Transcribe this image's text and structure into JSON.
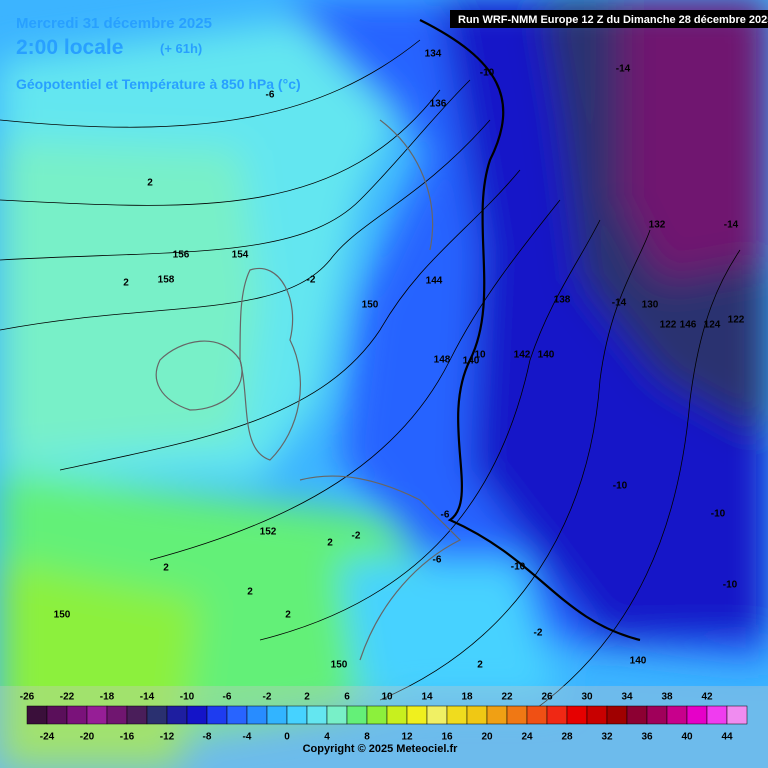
{
  "header": {
    "date": "Mercredi 31 décembre 2025",
    "time": "2:00 locale",
    "lead": "(+ 61h)",
    "field": "Géopotentiel et Température à 850 hPa (°c)",
    "run": "Run WRF-NMM Europe 12 Z du Dimanche 28 décembre 2025"
  },
  "map_labels": [
    134,
    136,
    -10,
    -14,
    -6,
    2,
    132,
    -14,
    156,
    154,
    158,
    2,
    -2,
    150,
    144,
    138,
    -14,
    130,
    122,
    146,
    124,
    122,
    148,
    140,
    10,
    142,
    140,
    -10,
    -10,
    152,
    -6,
    -2,
    2,
    -6,
    -10,
    2,
    2,
    -10,
    150,
    -2,
    140,
    150,
    2,
    2
  ],
  "legend": {
    "values": [
      -26,
      -24,
      -22,
      -20,
      -18,
      -16,
      -14,
      -12,
      -10,
      -8,
      -6,
      -4,
      -2,
      0,
      2,
      4,
      6,
      8,
      10,
      12,
      14,
      16,
      18,
      20,
      22,
      24,
      26,
      28,
      30,
      32,
      34,
      36,
      38,
      40,
      42,
      44
    ],
    "colors": [
      "#3a0f3a",
      "#5a0f5a",
      "#7a127a",
      "#961e96",
      "#701670",
      "#4a1e5a",
      "#2a3070",
      "#1e1ea0",
      "#1414c8",
      "#1e3cf0",
      "#2864ff",
      "#288cff",
      "#32b4ff",
      "#46d2ff",
      "#64e6f0",
      "#78f0c8",
      "#64f078",
      "#8cf03c",
      "#c8f01e",
      "#f0f01e",
      "#f0f064",
      "#f0dc1e",
      "#f0c814",
      "#f0a014",
      "#f07814",
      "#f05014",
      "#f02814",
      "#e60000",
      "#c80000",
      "#a00000",
      "#8c0032",
      "#a0005a",
      "#c8008c",
      "#e600c8",
      "#f03cf0",
      "#f08cf0"
    ]
  },
  "copyright": "Copyright © 2025 Meteociel.fr"
}
